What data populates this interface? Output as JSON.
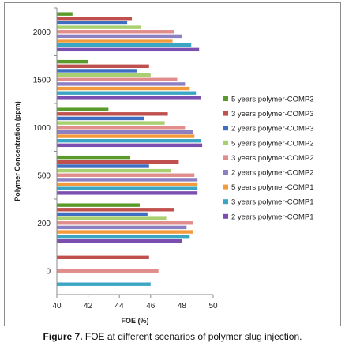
{
  "caption": {
    "label": "Figure 7.",
    "text": "FOE at different scenarios of polymer slug injection."
  },
  "chart_data": {
    "type": "bar",
    "orientation": "horizontal",
    "xlabel": "FOE (%)",
    "ylabel": "Polymer Concentration (ppm)",
    "xlim": [
      40,
      50
    ],
    "xticks": [
      40,
      42,
      44,
      46,
      48,
      50
    ],
    "grid": false,
    "legend_position": "right",
    "categories": [
      "0",
      "200",
      "500",
      "1000",
      "1500",
      "2000"
    ],
    "series": [
      {
        "name": "2 years polymer-COMP1",
        "color": "#7b4fb0",
        "values": [
          null,
          48.0,
          49.0,
          49.3,
          49.2,
          49.1
        ]
      },
      {
        "name": "3 years polymer-COMP1",
        "color": "#3aa6c4",
        "values": [
          46.0,
          48.5,
          49.0,
          49.2,
          48.9,
          48.6
        ]
      },
      {
        "name": "5 years polymer-COMP1",
        "color": "#f39a3c",
        "values": [
          null,
          48.7,
          49.0,
          48.8,
          48.5,
          47.4
        ]
      },
      {
        "name": "2 years polymer-COMP2",
        "color": "#8d80c2",
        "values": [
          null,
          48.3,
          49.0,
          48.7,
          48.2,
          48.0
        ]
      },
      {
        "name": "3 years polymer-COMP2",
        "color": "#e08d8b",
        "values": [
          46.5,
          48.7,
          48.8,
          48.2,
          47.7,
          47.5
        ]
      },
      {
        "name": "5 years polymer-COMP2",
        "color": "#a8cf70",
        "values": [
          null,
          47.0,
          47.3,
          46.9,
          46.0,
          45.4
        ]
      },
      {
        "name": "2 years polymer-COMP3",
        "color": "#3f6fc2",
        "values": [
          null,
          45.8,
          45.9,
          45.6,
          45.1,
          44.5
        ]
      },
      {
        "name": "3 years polymer-COMP3",
        "color": "#c0504d",
        "values": [
          45.9,
          47.5,
          47.8,
          47.1,
          45.9,
          44.8
        ]
      },
      {
        "name": "5 years polymer-COMP3",
        "color": "#5a9a2b",
        "values": [
          null,
          45.3,
          44.7,
          43.3,
          42.0,
          41.0
        ]
      }
    ]
  }
}
